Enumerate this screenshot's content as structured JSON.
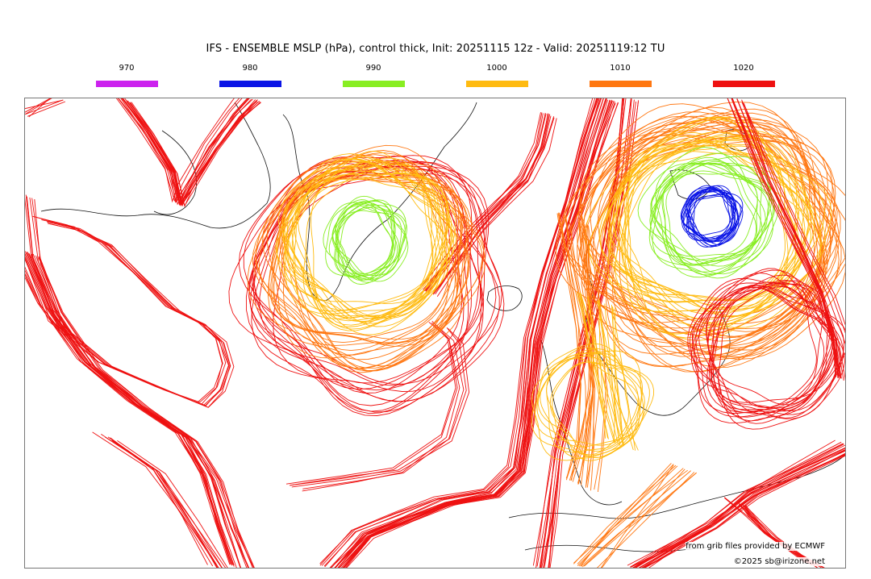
{
  "title": "IFS - ENSEMBLE MSLP (hPa), control thick, Init: 20251115 12z - Valid: 20251119:12 TU",
  "legend": [
    {
      "label": "970",
      "color": "#cc22ee"
    },
    {
      "label": "980",
      "color": "#0a14e6"
    },
    {
      "label": "990",
      "color": "#88ee22"
    },
    {
      "label": "1000",
      "color": "#ffbb11"
    },
    {
      "label": "1010",
      "color": "#ff7711"
    },
    {
      "label": "1020",
      "color": "#ee1111"
    }
  ],
  "credits": {
    "source": "from grib files provided by ECMWF",
    "copyright": "©2025 sb@irizone.net"
  }
}
